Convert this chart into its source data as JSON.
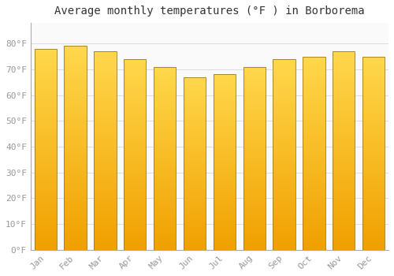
{
  "title": "Average monthly temperatures (°F ) in Borborema",
  "months": [
    "Jan",
    "Feb",
    "Mar",
    "Apr",
    "May",
    "Jun",
    "Jul",
    "Aug",
    "Sep",
    "Oct",
    "Nov",
    "Dec"
  ],
  "values": [
    78,
    79,
    77,
    74,
    71,
    67,
    68,
    71,
    74,
    75,
    77,
    75
  ],
  "bar_color_top": "#FFD84C",
  "bar_color_bottom": "#F0A000",
  "bar_edge_color": "#A07820",
  "background_color": "#FFFFFF",
  "plot_bg_color": "#FAFAFA",
  "grid_color": "#DDDDDD",
  "ylim": [
    0,
    88
  ],
  "yticks": [
    0,
    10,
    20,
    30,
    40,
    50,
    60,
    70,
    80
  ],
  "ytick_labels": [
    "0°F",
    "10°F",
    "20°F",
    "30°F",
    "40°F",
    "50°F",
    "60°F",
    "70°F",
    "80°F"
  ],
  "title_fontsize": 10,
  "tick_fontsize": 8,
  "title_color": "#333333",
  "tick_color": "#999999",
  "figsize": [
    5.0,
    3.5
  ],
  "dpi": 100
}
